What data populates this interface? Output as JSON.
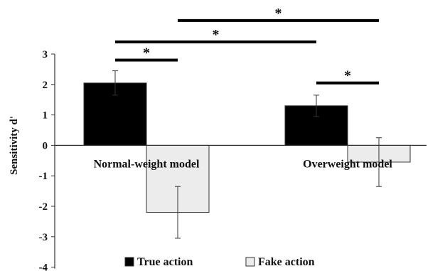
{
  "chart_data": {
    "type": "bar",
    "ylabel": "Sensitivity d'",
    "ylim": [
      -4,
      3
    ],
    "yticks": [
      3,
      2,
      1,
      0,
      -1,
      -2,
      -3,
      -4
    ],
    "categories": [
      "Normal-weight model",
      "Overweight model"
    ],
    "series": [
      {
        "name": "True action",
        "values": [
          2.05,
          1.3
        ],
        "error": [
          0.4,
          0.35
        ],
        "color": "#000000"
      },
      {
        "name": "Fake action",
        "values": [
          -2.2,
          -0.55
        ],
        "error": [
          0.85,
          0.8
        ],
        "color": "#ececec"
      }
    ],
    "significance": [
      {
        "from": "Normal-weight model:True action",
        "to": "Normal-weight model:Fake action",
        "level": 2.8,
        "label": "*"
      },
      {
        "from": "Normal-weight model:True action",
        "to": "Overweight model:True action",
        "level": 3.4,
        "label": "*"
      },
      {
        "from": "Normal-weight model:Fake action",
        "to": "Overweight model:Fake action",
        "level": 4.1,
        "label": "*"
      },
      {
        "from": "Overweight model:True action",
        "to": "Overweight model:Fake action",
        "level": 2.05,
        "label": "*"
      }
    ],
    "legend": {
      "position": "bottom"
    }
  }
}
